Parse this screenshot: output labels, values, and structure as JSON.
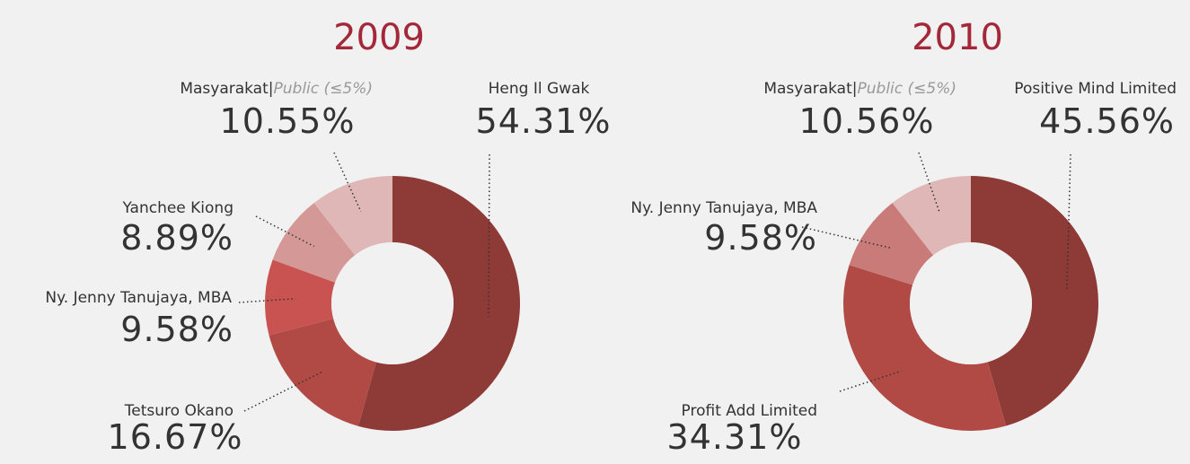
{
  "chart_data": [
    {
      "type": "pie",
      "title": "2009",
      "categories": [
        "Heng Il Gwak",
        "Tetsuro Okano",
        "Ny. Jenny Tanujaya, MBA",
        "Yanchee Kiong",
        "Masyarakat|Public (≤5%)"
      ],
      "values": [
        54.31,
        16.67,
        9.58,
        8.89,
        10.55
      ],
      "value_labels": [
        "54.31%",
        "16.67%",
        "9.58%",
        "8.89%",
        "10.55%"
      ],
      "colors": [
        "#8e3a37",
        "#b14a45",
        "#c85350",
        "#d49896",
        "#e0b7b7"
      ]
    },
    {
      "type": "pie",
      "title": "2010",
      "categories": [
        "Positive Mind Limited",
        "Profit Add Limited",
        "Ny. Jenny Tanujaya, MBA",
        "Masyarakat|Public (≤5%)"
      ],
      "values": [
        45.56,
        34.31,
        9.58,
        10.56
      ],
      "value_labels": [
        "45.56%",
        "34.31%",
        "9.58%",
        "10.56%"
      ],
      "colors": [
        "#8e3a37",
        "#b14a45",
        "#c97b79",
        "#e0b7b7"
      ]
    }
  ]
}
